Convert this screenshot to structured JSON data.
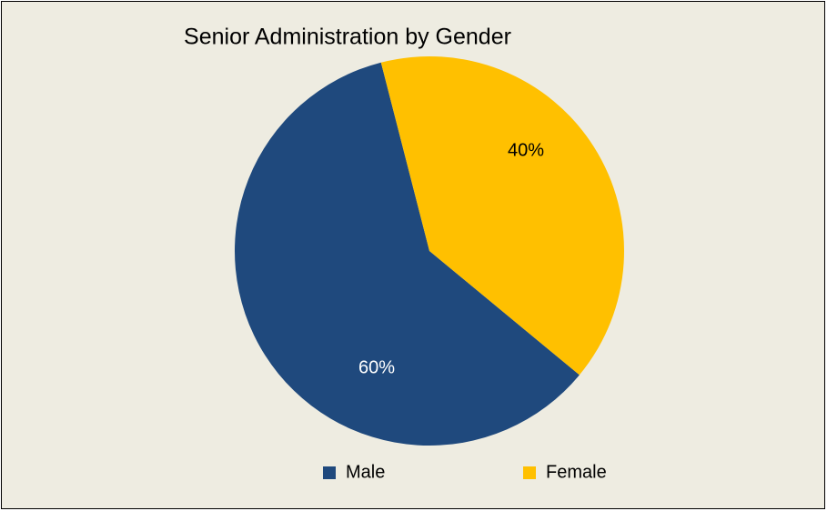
{
  "chart_data": {
    "type": "pie",
    "title": "Senior Administration by Gender",
    "categories": [
      "Male",
      "Female"
    ],
    "values": [
      60,
      40
    ],
    "value_labels": [
      "60%",
      "40%"
    ],
    "colors": [
      "#1f497d",
      "#ffc000"
    ],
    "legend": "bottom"
  }
}
